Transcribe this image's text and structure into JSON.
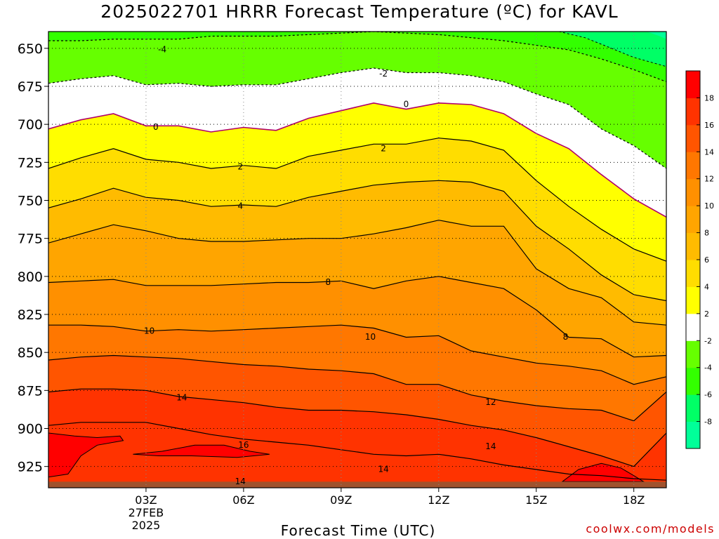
{
  "chart_data": {
    "type": "heatmap",
    "title": "2025022701 HRRR Forecast Temperature (ºC) for KAVL",
    "xlabel": "Forecast Time (UTC)",
    "ylabel": "",
    "credit": "coolwx.com/models",
    "x_axis": {
      "unit": "hours from 2025-02-27 00Z",
      "xlim": [
        0,
        19
      ],
      "ticks": [
        {
          "x": 3,
          "lines": [
            "03Z",
            "27FEB",
            "2025"
          ]
        },
        {
          "x": 6,
          "lines": [
            "06Z"
          ]
        },
        {
          "x": 9,
          "lines": [
            "09Z"
          ]
        },
        {
          "x": 12,
          "lines": [
            "12Z"
          ]
        },
        {
          "x": 15,
          "lines": [
            "15Z"
          ]
        },
        {
          "x": 18,
          "lines": [
            "18Z"
          ]
        }
      ]
    },
    "y_axis": {
      "unit": "hPa",
      "ylim": [
        939,
        639
      ],
      "ticks": [
        "650",
        "675",
        "700",
        "725",
        "750",
        "775",
        "800",
        "825",
        "850",
        "875",
        "900",
        "925"
      ],
      "tick_values": [
        650,
        675,
        700,
        725,
        750,
        775,
        800,
        825,
        850,
        875,
        900,
        925
      ]
    },
    "ground_top_hPa": 935,
    "colors": {
      "ground": "#a0522d",
      "n8": "#00ff99",
      "n6": "#00ff66",
      "n4": "#33ff00",
      "n2": "#66ff00",
      "z0": "#ffffff",
      "p2": "#ffff00",
      "p4": "#ffdd00",
      "p6": "#ffbb00",
      "p8": "#ffa500",
      "p10": "#ff9000",
      "p12": "#ff7700",
      "p14": "#ff5500",
      "p16": "#ff3300",
      "p18": "#ff0000",
      "zero_line": "#b0006a"
    },
    "colorbar": {
      "labels": [
        "18",
        "16",
        "14",
        "12",
        "10",
        "8",
        "6",
        "4",
        "2",
        "-2",
        "-4",
        "-6",
        "-8"
      ],
      "label_values": [
        18,
        16,
        14,
        12,
        10,
        8,
        6,
        4,
        2,
        -2,
        -4,
        -6,
        -8
      ],
      "bands": [
        "n8",
        "n6",
        "n4",
        "n2",
        "z0",
        "p2",
        "p4",
        "p6",
        "p8",
        "p10",
        "p12",
        "p14",
        "p16",
        "p18"
      ]
    },
    "x_hours": [
      0,
      1,
      2,
      3,
      4,
      5,
      6,
      7,
      8,
      9,
      10,
      11,
      12,
      13,
      14,
      15,
      16,
      17,
      18,
      19
    ],
    "isotherms": [
      {
        "value": -4,
        "dashed": true,
        "band_above": "n4",
        "pressures": [
          645,
          645,
          644,
          644,
          644,
          642,
          642,
          642,
          641,
          640,
          639,
          640,
          641,
          643,
          645,
          648,
          651,
          657,
          664,
          672
        ]
      },
      {
        "value": -2,
        "dashed": true,
        "band_above": "n2",
        "pressures": [
          673,
          670,
          668,
          674,
          673,
          675,
          674,
          674,
          670,
          666,
          663,
          666,
          666,
          668,
          672,
          680,
          687,
          703,
          714,
          729
        ]
      },
      {
        "value": 0,
        "dashed": false,
        "band_above": "z0",
        "pressures": [
          703,
          697,
          693,
          701,
          701,
          705,
          702,
          704,
          696,
          691,
          686,
          690,
          686,
          687,
          693,
          706,
          716,
          733,
          749,
          761
        ]
      },
      {
        "value": 2,
        "dashed": false,
        "band_above": "p2",
        "pressures": [
          729,
          722,
          716,
          723,
          725,
          729,
          727,
          729,
          721,
          717,
          713,
          713,
          709,
          711,
          717,
          737,
          754,
          769,
          782,
          790
        ]
      },
      {
        "value": 4,
        "dashed": false,
        "band_above": "p4",
        "pressures": [
          755,
          749,
          742,
          748,
          750,
          754,
          753,
          754,
          748,
          744,
          740,
          738,
          737,
          738,
          744,
          767,
          782,
          799,
          812,
          816
        ]
      },
      {
        "value": 6,
        "dashed": false,
        "band_above": "p6",
        "pressures": [
          778,
          772,
          766,
          770,
          775,
          777,
          777,
          776,
          775,
          775,
          772,
          768,
          763,
          767,
          767,
          795,
          808,
          814,
          830,
          832
        ]
      },
      {
        "value": 8,
        "dashed": false,
        "band_above": "p8",
        "pressures": [
          804,
          803,
          802,
          806,
          806,
          806,
          805,
          804,
          804,
          803,
          808,
          803,
          800,
          804,
          808,
          822,
          840,
          841,
          853,
          852
        ]
      },
      {
        "value": 10,
        "dashed": false,
        "band_above": "p10",
        "pressures": [
          832,
          832,
          833,
          836,
          835,
          836,
          835,
          834,
          833,
          832,
          834,
          840,
          839,
          849,
          853,
          857,
          859,
          862,
          871,
          866
        ]
      },
      {
        "value": 12,
        "dashed": false,
        "band_above": "p12",
        "pressures": [
          855,
          853,
          852,
          853,
          854,
          856,
          858,
          859,
          861,
          862,
          864,
          871,
          871,
          878,
          882,
          885,
          887,
          888,
          895,
          876
        ]
      },
      {
        "value": 14,
        "dashed": false,
        "band_above": "p14",
        "pressures": [
          876,
          874,
          874,
          875,
          879,
          881,
          883,
          886,
          888,
          888,
          889,
          891,
          894,
          898,
          901,
          906,
          912,
          918,
          925,
          903
        ]
      },
      {
        "value": 16,
        "dashed": false,
        "band_above": "p16",
        "pressures": [
          898,
          896,
          896,
          896,
          900,
          904,
          907,
          909,
          911,
          914,
          917,
          918,
          917,
          920,
          924,
          927,
          930,
          931,
          933,
          934
        ]
      }
    ],
    "contour_labels": [
      {
        "text": "-4",
        "x": 3.5,
        "p": 651
      },
      {
        "text": "-2",
        "x": 10.3,
        "p": 667
      },
      {
        "text": "0",
        "x": 3.3,
        "p": 702
      },
      {
        "text": "0",
        "x": 11.0,
        "p": 687
      },
      {
        "text": "2",
        "x": 5.9,
        "p": 728
      },
      {
        "text": "2",
        "x": 10.3,
        "p": 716
      },
      {
        "text": "4",
        "x": 5.9,
        "p": 754
      },
      {
        "text": "8",
        "x": 8.6,
        "p": 804
      },
      {
        "text": "8",
        "x": 15.9,
        "p": 840
      },
      {
        "text": "10",
        "x": 3.1,
        "p": 836
      },
      {
        "text": "10",
        "x": 9.9,
        "p": 840
      },
      {
        "text": "12",
        "x": 13.6,
        "p": 883
      },
      {
        "text": "14",
        "x": 4.1,
        "p": 880
      },
      {
        "text": "14",
        "x": 13.6,
        "p": 912
      },
      {
        "text": "14",
        "x": 10.3,
        "p": 927
      },
      {
        "text": "14",
        "x": 5.9,
        "p": 935
      },
      {
        "text": "16",
        "x": 6.0,
        "p": 911
      }
    ]
  }
}
